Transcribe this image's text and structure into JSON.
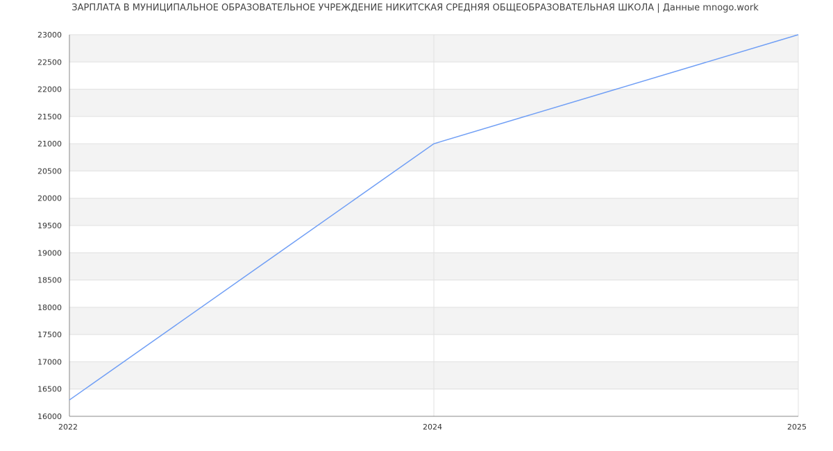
{
  "chart_data": {
    "type": "line",
    "title": "ЗАРПЛАТА В МУНИЦИПАЛЬНОЕ ОБРАЗОВАТЕЛЬНОЕ УЧРЕЖДЕНИЕ НИКИТСКАЯ СРЕДНЯЯ ОБЩЕОБРАЗОВАТЕЛЬНАЯ ШКОЛА | Данные mnogo.work",
    "xlabel": "",
    "ylabel": "",
    "categories": [
      "2022",
      "2024",
      "2025"
    ],
    "series": [
      {
        "values": [
          16300,
          21000,
          23000
        ],
        "color": "#6f9ef5"
      }
    ],
    "ylim": [
      16000,
      23000
    ],
    "yticks": [
      16000,
      16500,
      17000,
      17500,
      18000,
      18500,
      19000,
      19500,
      20000,
      20500,
      21000,
      21500,
      22000,
      22500,
      23000
    ],
    "grid": true,
    "band_color": "#f3f3f3",
    "grid_color": "#e0e0e0",
    "axis_color": "#888888"
  }
}
